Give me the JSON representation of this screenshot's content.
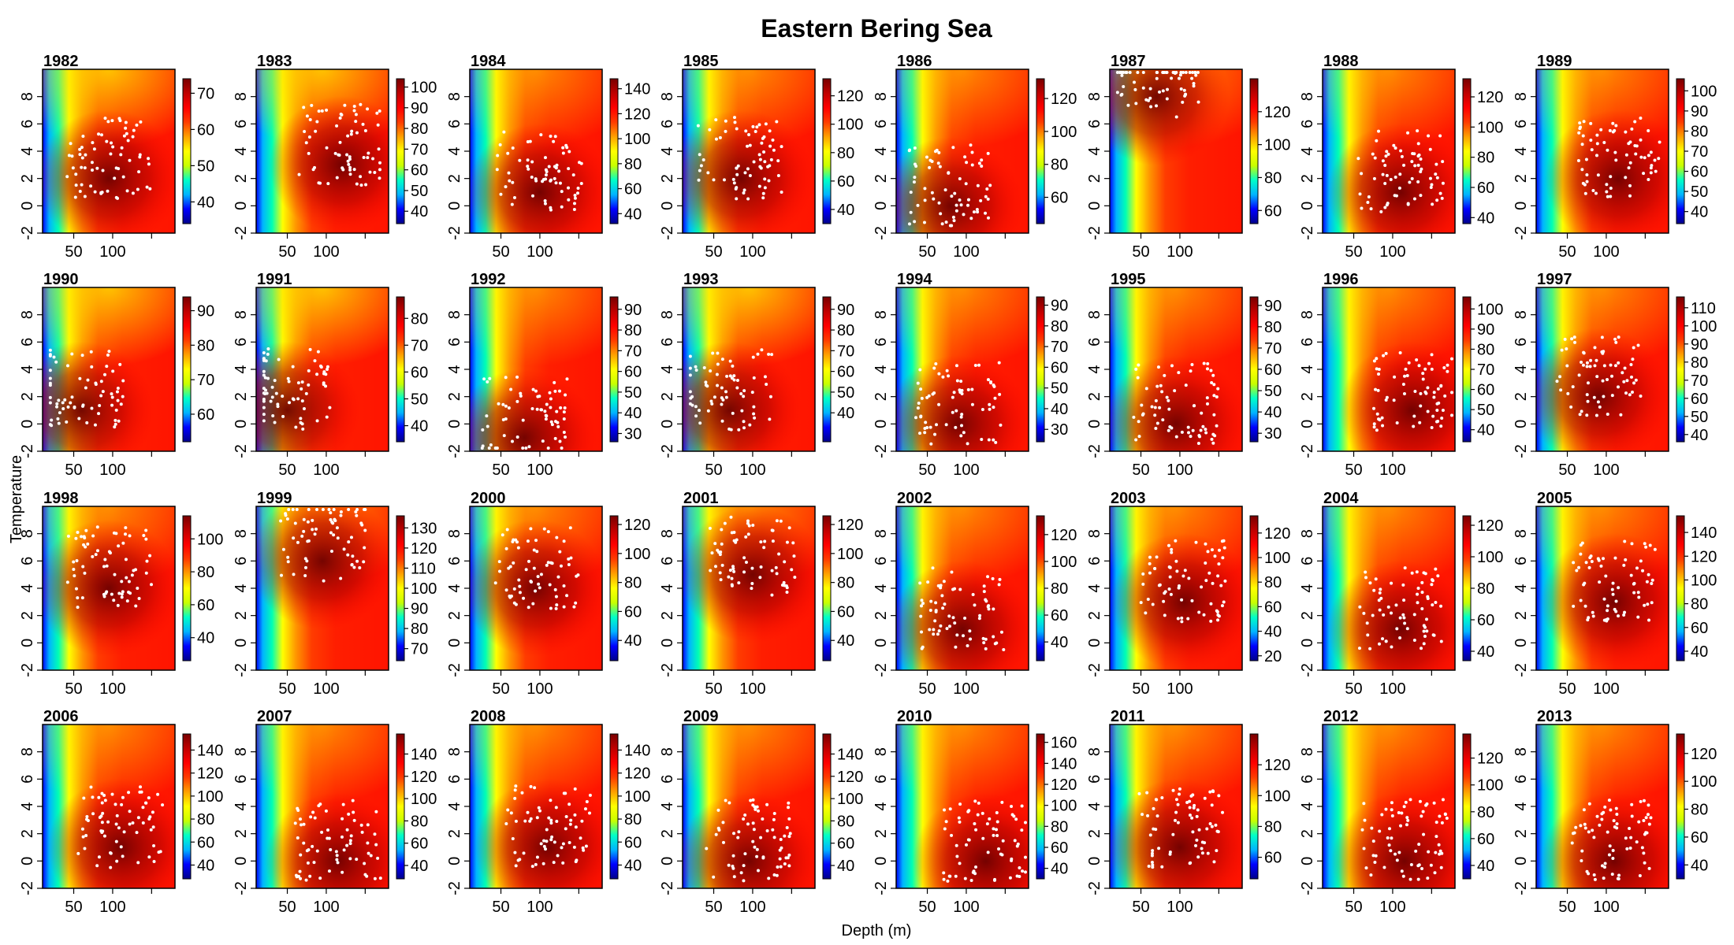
{
  "title": "Eastern Bering Sea",
  "xlabel": "Depth (m)",
  "ylabel": "Temperature",
  "chart_data": {
    "type": "heatmap",
    "title": "Eastern Bering Sea",
    "xlabel": "Depth (m)",
    "ylabel": "Temperature",
    "x_ticks": [
      50,
      100
    ],
    "y_ticks": [
      -2,
      0,
      2,
      4,
      6,
      8
    ],
    "xlim": [
      10,
      180
    ],
    "ylim": [
      -2,
      10
    ],
    "colormap": [
      "#00008b",
      "#0000ff",
      "#00b4ff",
      "#00ffc8",
      "#c8ff00",
      "#ffff00",
      "#ffa000",
      "#ff3c00",
      "#ff0000",
      "#c00000",
      "#780000"
    ],
    "point_color": "#ffffff",
    "panels": [
      {
        "year": "1982",
        "colorbar_ticks": [
          40,
          50,
          60,
          70
        ],
        "colorbar_range": [
          34,
          74
        ],
        "hot_center": [
          95,
          2
        ],
        "cool_band_top": true
      },
      {
        "year": "1983",
        "colorbar_ticks": [
          40,
          50,
          60,
          70,
          80,
          90,
          100
        ],
        "colorbar_range": [
          34,
          104
        ],
        "hot_center": [
          120,
          3
        ],
        "cool_band_top": true
      },
      {
        "year": "1984",
        "colorbar_ticks": [
          40,
          60,
          80,
          100,
          120,
          140
        ],
        "colorbar_range": [
          32,
          148
        ],
        "hot_center": [
          100,
          1
        ]
      },
      {
        "year": "1985",
        "colorbar_ticks": [
          40,
          60,
          80,
          100,
          120
        ],
        "colorbar_range": [
          30,
          132
        ],
        "hot_center": [
          85,
          2
        ]
      },
      {
        "year": "1986",
        "colorbar_ticks": [
          60,
          80,
          100,
          120
        ],
        "colorbar_range": [
          44,
          132
        ],
        "hot_center": [
          80,
          0
        ]
      },
      {
        "year": "1987",
        "colorbar_ticks": [
          60,
          80,
          100,
          120
        ],
        "colorbar_range": [
          52,
          140
        ],
        "hot_center": [
          70,
          8
        ]
      },
      {
        "year": "1988",
        "colorbar_ticks": [
          40,
          60,
          80,
          100,
          120
        ],
        "colorbar_range": [
          36,
          132
        ],
        "hot_center": [
          110,
          1
        ]
      },
      {
        "year": "1989",
        "colorbar_ticks": [
          40,
          50,
          60,
          70,
          80,
          90,
          100
        ],
        "colorbar_range": [
          34,
          106
        ],
        "hot_center": [
          115,
          2
        ]
      },
      {
        "year": "1990",
        "colorbar_ticks": [
          60,
          70,
          80,
          90
        ],
        "colorbar_range": [
          52,
          94
        ],
        "hot_center": [
          60,
          1
        ],
        "cool_band_top": true
      },
      {
        "year": "1991",
        "colorbar_ticks": [
          40,
          50,
          60,
          70,
          80
        ],
        "colorbar_range": [
          34,
          88
        ],
        "hot_center": [
          50,
          1
        ],
        "cool_band_top": true
      },
      {
        "year": "1992",
        "colorbar_ticks": [
          30,
          40,
          50,
          60,
          70,
          80,
          90
        ],
        "colorbar_range": [
          26,
          96
        ],
        "hot_center": [
          80,
          -1
        ]
      },
      {
        "year": "1993",
        "colorbar_ticks": [
          40,
          50,
          60,
          70,
          80,
          90
        ],
        "colorbar_range": [
          26,
          96
        ],
        "hot_center": [
          70,
          1
        ],
        "cool_band_top": true
      },
      {
        "year": "1994",
        "colorbar_ticks": [
          30,
          40,
          50,
          60,
          70,
          80,
          90
        ],
        "colorbar_range": [
          24,
          94
        ],
        "hot_center": [
          90,
          0
        ]
      },
      {
        "year": "1995",
        "colorbar_ticks": [
          30,
          40,
          50,
          60,
          70,
          80,
          90
        ],
        "colorbar_range": [
          26,
          94
        ],
        "hot_center": [
          95,
          0
        ]
      },
      {
        "year": "1996",
        "colorbar_ticks": [
          40,
          50,
          60,
          70,
          80,
          90,
          100
        ],
        "colorbar_range": [
          34,
          106
        ],
        "hot_center": [
          125,
          1
        ]
      },
      {
        "year": "1997",
        "colorbar_ticks": [
          40,
          50,
          60,
          70,
          80,
          90,
          100,
          110
        ],
        "colorbar_range": [
          36,
          116
        ],
        "hot_center": [
          90,
          2
        ]
      },
      {
        "year": "1998",
        "colorbar_ticks": [
          40,
          60,
          80,
          100
        ],
        "colorbar_range": [
          26,
          114
        ],
        "hot_center": [
          95,
          4
        ]
      },
      {
        "year": "1999",
        "colorbar_ticks": [
          70,
          80,
          90,
          100,
          110,
          120,
          130
        ],
        "colorbar_range": [
          64,
          136
        ],
        "hot_center": [
          95,
          6
        ]
      },
      {
        "year": "2000",
        "colorbar_ticks": [
          40,
          60,
          80,
          100,
          120
        ],
        "colorbar_range": [
          26,
          126
        ],
        "hot_center": [
          95,
          4
        ]
      },
      {
        "year": "2001",
        "colorbar_ticks": [
          40,
          60,
          80,
          100,
          120
        ],
        "colorbar_range": [
          26,
          126
        ],
        "hot_center": [
          100,
          5
        ]
      },
      {
        "year": "2002",
        "colorbar_ticks": [
          40,
          60,
          80,
          100,
          120
        ],
        "colorbar_range": [
          26,
          134
        ],
        "hot_center": [
          95,
          1
        ]
      },
      {
        "year": "2003",
        "colorbar_ticks": [
          20,
          40,
          60,
          80,
          100,
          120
        ],
        "colorbar_range": [
          16,
          134
        ],
        "hot_center": [
          105,
          3
        ]
      },
      {
        "year": "2004",
        "colorbar_ticks": [
          40,
          60,
          80,
          100,
          120
        ],
        "colorbar_range": [
          34,
          126
        ],
        "hot_center": [
          110,
          1
        ]
      },
      {
        "year": "2005",
        "colorbar_ticks": [
          40,
          60,
          80,
          100,
          120,
          140
        ],
        "colorbar_range": [
          32,
          154
        ],
        "hot_center": [
          110,
          3
        ]
      },
      {
        "year": "2006",
        "colorbar_ticks": [
          40,
          60,
          80,
          100,
          120,
          140
        ],
        "colorbar_range": [
          28,
          154
        ],
        "hot_center": [
          110,
          1
        ]
      },
      {
        "year": "2007",
        "colorbar_ticks": [
          40,
          60,
          80,
          100,
          120,
          140
        ],
        "colorbar_range": [
          28,
          158
        ],
        "hot_center": [
          115,
          0
        ]
      },
      {
        "year": "2008",
        "colorbar_ticks": [
          40,
          60,
          80,
          100,
          120,
          140
        ],
        "colorbar_range": [
          28,
          154
        ],
        "hot_center": [
          110,
          1
        ]
      },
      {
        "year": "2009",
        "colorbar_ticks": [
          40,
          60,
          80,
          100,
          120,
          140
        ],
        "colorbar_range": [
          28,
          158
        ],
        "hot_center": [
          95,
          0
        ]
      },
      {
        "year": "2010",
        "colorbar_ticks": [
          40,
          60,
          80,
          100,
          120,
          140,
          160
        ],
        "colorbar_range": [
          30,
          168
        ],
        "hot_center": [
          125,
          0
        ]
      },
      {
        "year": "2011",
        "colorbar_ticks": [
          60,
          80,
          100,
          120
        ],
        "colorbar_range": [
          46,
          140
        ],
        "hot_center": [
          100,
          1
        ]
      },
      {
        "year": "2012",
        "colorbar_ticks": [
          40,
          60,
          80,
          100,
          120
        ],
        "colorbar_range": [
          30,
          138
        ],
        "hot_center": [
          115,
          0
        ]
      },
      {
        "year": "2013",
        "colorbar_ticks": [
          40,
          60,
          80,
          100,
          120
        ],
        "colorbar_range": [
          30,
          134
        ],
        "hot_center": [
          110,
          0
        ]
      }
    ]
  }
}
